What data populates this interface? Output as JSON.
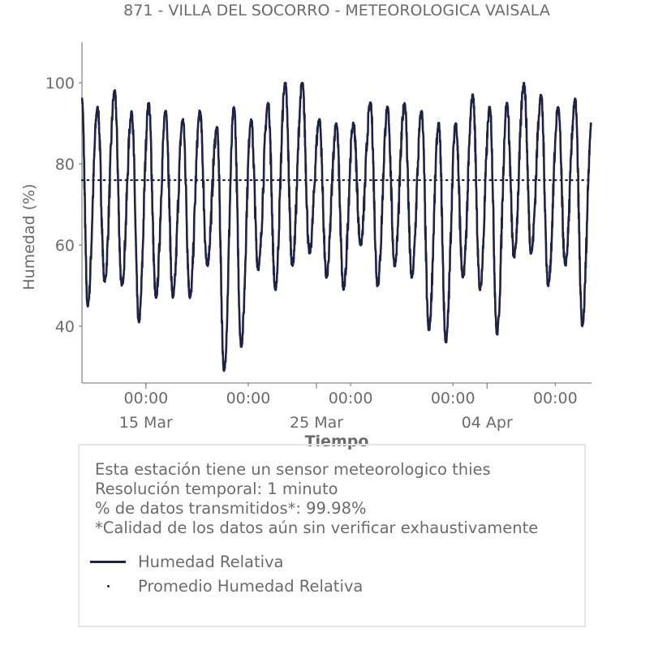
{
  "chart_data": {
    "type": "line",
    "title": "871 - VILLA DEL SOCORRO - METEOROLOGICA VAISALA",
    "xlabel": "Tiempo",
    "ylabel": "Humedad (%)",
    "ylim": [
      26,
      110
    ],
    "xlim": [
      "Mar 11 06:00",
      "Apr 10 03:00"
    ],
    "yticks": [
      40,
      60,
      80,
      100
    ],
    "xticks_minor": [
      {
        "at": "Mar 15 00:00",
        "label": "00:00"
      },
      {
        "at": "Mar 21 00:00",
        "label": "00:00"
      },
      {
        "at": "Mar 27 00:00",
        "label": "00:00"
      },
      {
        "at": "Apr 02 00:00",
        "label": "00:00"
      },
      {
        "at": "Apr 08 00:00",
        "label": "00:00"
      }
    ],
    "xticks_major": [
      {
        "at": "Mar 15 00:00",
        "label": "15 Mar"
      },
      {
        "at": "Mar 25 00:00",
        "label": "25 Mar"
      },
      {
        "at": "Apr 04 00:00",
        "label": "04 Apr"
      }
    ],
    "grid": false,
    "series": [
      {
        "name": "Humedad Relativa",
        "color": "#1f2147",
        "start": {
          "x": "Mar 11 06:00",
          "y": 96
        },
        "daily_minima_14h_from_Mar_11": [
          45,
          51,
          50,
          41,
          47,
          47,
          47,
          55,
          29,
          35,
          54,
          49,
          55,
          58,
          52,
          49,
          60,
          50,
          55,
          52,
          39,
          36,
          52,
          49,
          38,
          57,
          58,
          50,
          55,
          40
        ],
        "daily_maxima_04h_from_Mar_12": [
          94,
          98,
          93,
          95,
          93,
          91,
          93,
          89,
          94,
          91,
          95,
          100,
          100,
          91,
          90,
          90,
          95,
          94,
          95,
          93,
          90,
          90,
          97,
          94,
          95,
          100,
          97,
          94,
          96
        ],
        "end": {
          "x": "Apr 10 03:00",
          "y": 90
        }
      },
      {
        "name": "Promedio Humedad Relativa",
        "color": "#1f2147",
        "style": "dotted",
        "value": 76
      }
    ]
  },
  "info": {
    "line1": "Esta estación tiene un sensor meteorologico thies",
    "line2": "Resolución temporal: 1 minuto",
    "line3": "% de datos transmitidos*: 99.98%",
    "line4": "*Calidad de los datos aún sin verificar exhaustivamente"
  },
  "legend": {
    "item1": "Humedad Relativa",
    "item2": "Promedio Humedad Relativa"
  }
}
